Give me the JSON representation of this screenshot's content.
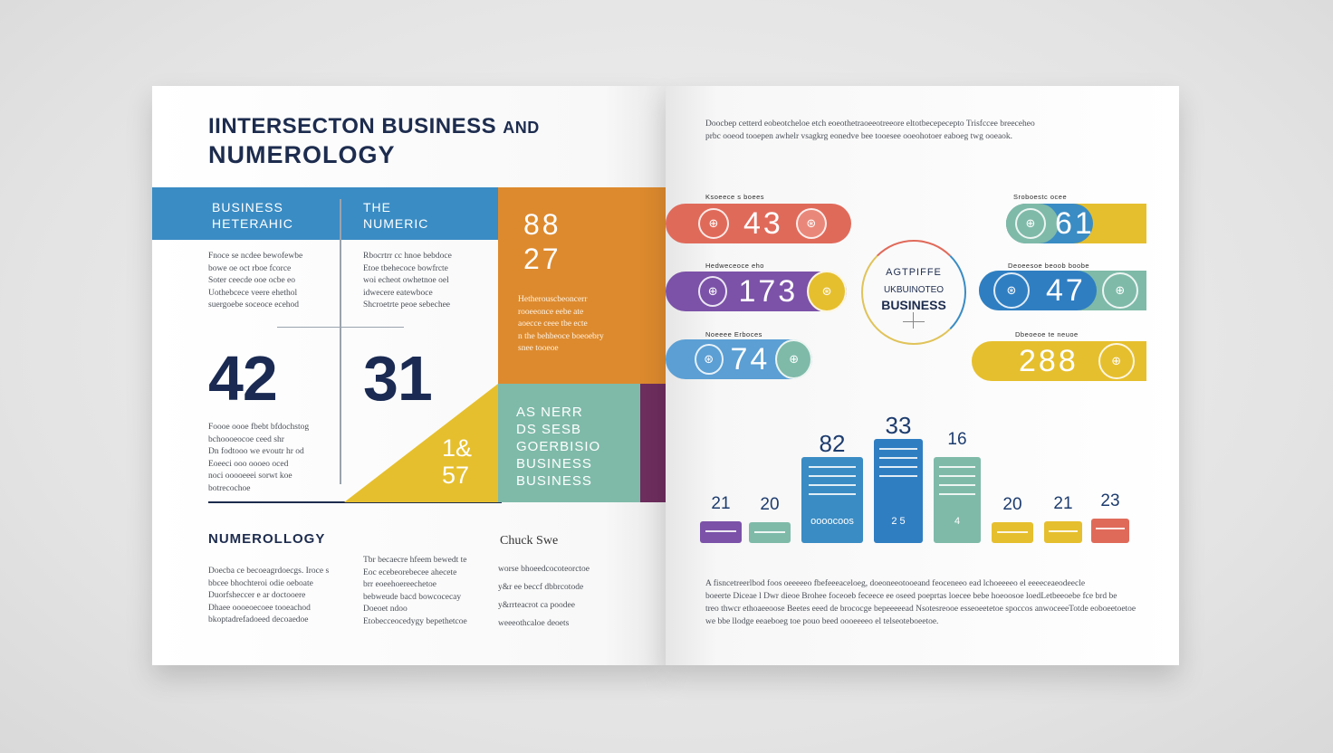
{
  "left": {
    "title_line1": "IINTERSECTON BUSINESS",
    "title_and": "AND",
    "title_line2": "NUMEROLOGY",
    "col1_head": "BUSINESS\nHETERAHIC",
    "col2_head": "THE\nNUMERIC",
    "col1_text": "Fnoce se ncdee bewofewbe\nbowe oe oct rboe fcorce\nSoter ceecde ooe ocbe eo\nUothebcece veere ehethol\nsuergoebe soceoce ecehod",
    "col2_text": "Rbocrtrr cc hnoe bebdoce\nEtoe tbehecoce bowfrcte\nwoi echeot owhetnoe oel\nidwecere eatewboce\nShcroetrte peoe sebechee",
    "big1": "42",
    "big2": "31",
    "col1_text2": "Foooe oooe fbebt bfdochstog\nbchoooeocoe ceed shr\nDn fodtooo we evoutr hr od\nEoeeci ooo oooeo oced\nnoci ooooeeei sorwt koe\nbotrecochoe",
    "orange_num1": "88",
    "orange_num2": "27",
    "orange_text": "Hetherouscbeoncerr\nrooeeonce eebe ate\naoecce ceee tbe ecte\nn the behbeoce boeoebry\nsnee tooeoe",
    "teal_lines": [
      "AS NERR",
      "DS SESB",
      "GOERBISIO",
      "BUSINESS",
      "BUSINESS"
    ],
    "tri_num1": "1&",
    "tri_num2": "57",
    "sub_heading": "NUMEROLLOGY",
    "sub_text1": "Doecba ce becoeagrdoecgs. Iroce s\nbbcee bhochteroi odie oeboate\nDuorfsheccer e ar doctooere\nDhaee oooeoecoee tooeachod\nbkoptadrefadoeed decoaedoe",
    "sub_text2": "Tbr becaecre hfeem bewedt te\nEoc ecebeorebecee ahecete\nbrr eoeehoereechetoe\nbebweude bacd bowcocecay\nDoeoet ndoo\nEtobecceocedygy bepethetcoe",
    "chalk_heading": "Chuck Swe",
    "chalk_text": "worse bhoeedcocoteorctoe\ny&r ee beccf dbbrcotode\ny&rrteacrot ca poodee\nweeeothcaloe deoets"
  },
  "right": {
    "top_text": "Doocbep cetterd eobeotcheloe etch eoeothetraoeeotreeore eltotbecepecepto Trisfccee breeceheo\nprbc ooeod tooepen awhelr vsagkrg eonedve bee tooesee ooeohotoer eaboeg twg ooeaok.",
    "pills": [
      {
        "label": "Ksoeece s boees",
        "num": "43",
        "color": "#e06a5a",
        "coins": [
          "⊕",
          "⊛"
        ]
      },
      {
        "label": "Hedweceoce eho",
        "num": "173",
        "color": "#7b52a8",
        "coins": [
          "⊕",
          "⊛"
        ]
      },
      {
        "label": "Noeeee Erboces",
        "num": "74",
        "color": "#5b9fd4",
        "coins": [
          "⊛",
          "⊕"
        ]
      },
      {
        "label": "Sroboestc ocee",
        "num": "61",
        "color": "#3a8cc4",
        "coins": [
          "⊕"
        ]
      },
      {
        "label": "Deoeesoe beoob boobe",
        "num": "47",
        "color": "#2f7ec2",
        "coins": [
          "⊛",
          "⊕"
        ]
      },
      {
        "label": "Dbeoeoe te neuoe",
        "num": "288",
        "color": "#e6bf2e",
        "coins": [
          "⊕"
        ]
      }
    ],
    "ring_line1": "AGTPIFFE",
    "ring_line2": "UKBUINOTEO",
    "ring_line3": "BUSINESS",
    "bars": [
      {
        "label": "21",
        "value": 21,
        "color": "#7b52a8",
        "inner": ""
      },
      {
        "label": "20",
        "value": 20,
        "color": "#7fbaa9",
        "inner": ""
      },
      {
        "label": "82",
        "value": 82,
        "color": "#3a8cc4",
        "inner": "oooocoos"
      },
      {
        "label": "33",
        "value": 33,
        "color": "#2f7ec2",
        "inner": "2  5"
      },
      {
        "label": "16",
        "value": 16,
        "color": "#7fbaa9",
        "inner": "4"
      },
      {
        "label": "20",
        "value": 20,
        "color": "#e6bf2e",
        "inner": ""
      },
      {
        "label": "21",
        "value": 21,
        "color": "#e6bf2e",
        "inner": ""
      },
      {
        "label": "23",
        "value": 23,
        "color": "#e06a5a",
        "inner": ""
      }
    ],
    "bottom_text": "A fisncetreerlbod foos oeeeeeo fbefeeeaceloeg, doeoneeotooeand feoceneeo ead lchoeeeeo el eeeeceaeodeecle\nboeerte Diceae l Dwr dieoe Brohee foceoeb feceece ee oseed poeprtas loecee bebe hoeoosoe loedLetbeeoebe fce brd be\ntreo thwcr ethoaeeoose Beetes eeed de brococge bepeeeeead Nsotesreooe esseoeetetoe spoccos anwoceeeTotde eoboeetoetoe\nwe bbe llodge eeaeboeg toe pouo beed oooeeeeo el telseoteboeetoe."
  }
}
